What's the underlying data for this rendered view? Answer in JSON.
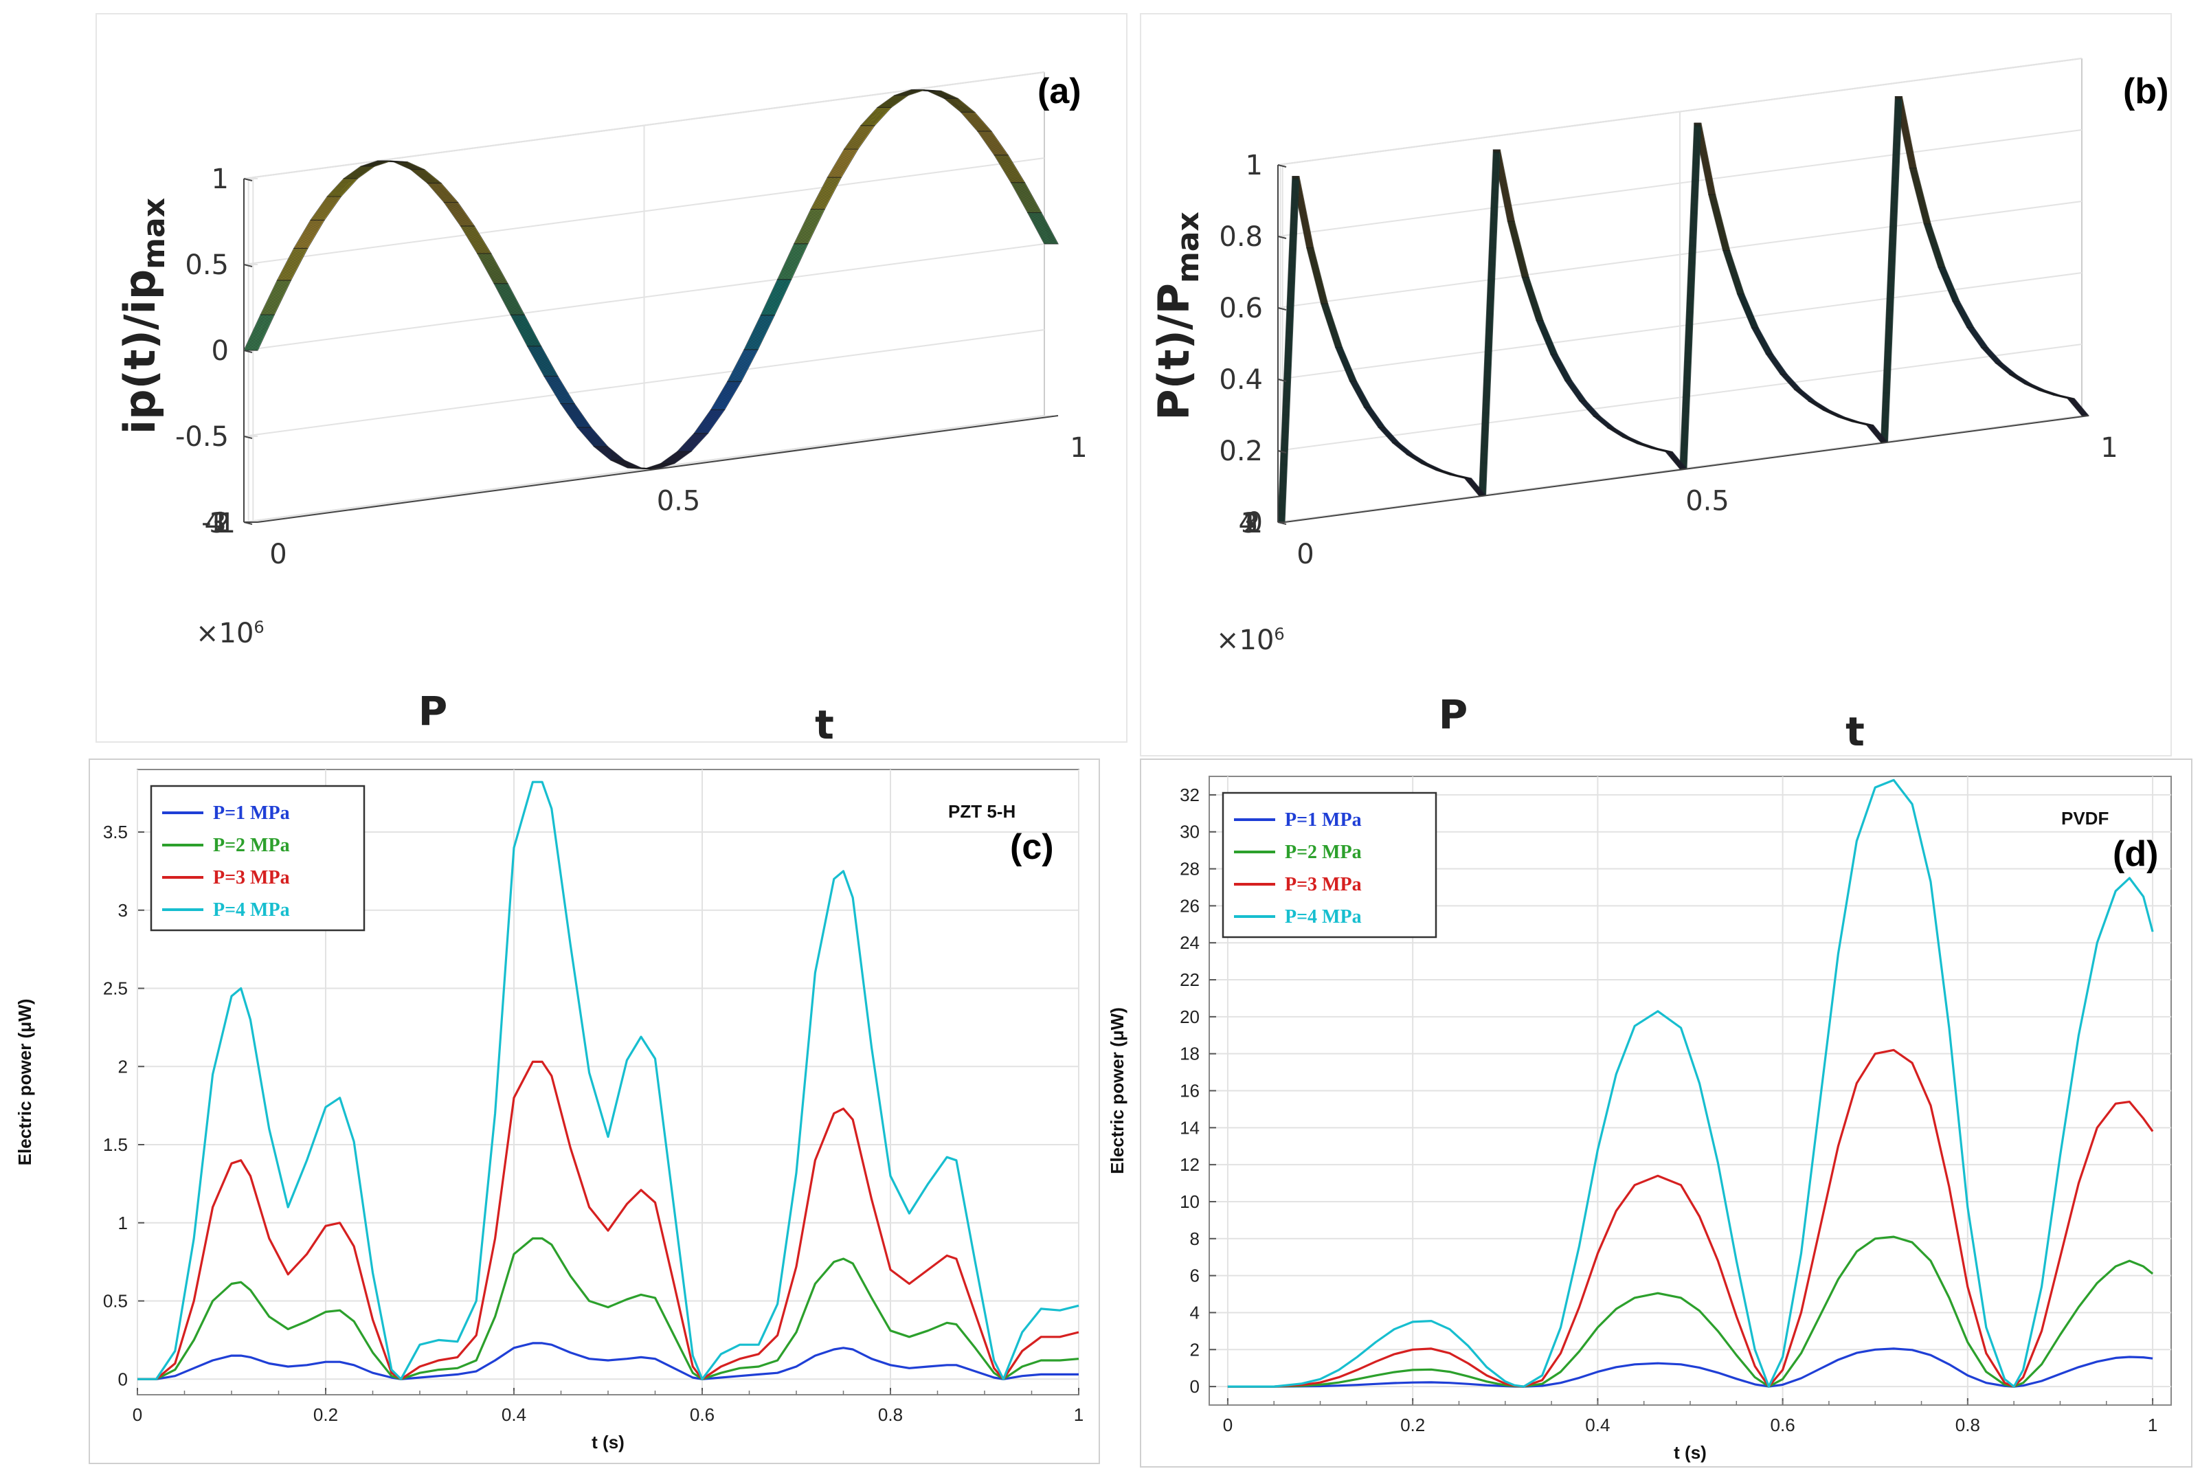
{
  "surfaces": [
    {
      "id": "a",
      "panel_label": "(a)",
      "z_label_main": "ip(t)/ip",
      "z_label_sub": "max",
      "z_ticks": [
        "1",
        "0.5",
        "0",
        "-0.5",
        "-1"
      ],
      "x_label": "t",
      "x_ticks": [
        "0",
        "0.5",
        "1"
      ],
      "y_label": "P",
      "y_ticks": [
        "4",
        "3",
        "2",
        "1"
      ],
      "y_multiplier": "×10",
      "y_multiplier_exp": "6",
      "function": "sin(2*pi*1.5*t)",
      "zmin": -1,
      "zmax": 1
    },
    {
      "id": "b",
      "panel_label": "(b)",
      "z_label_main": "P(t)/P",
      "z_label_sub": "max",
      "z_ticks": [
        "1",
        "0.8",
        "0.6",
        "0.4",
        "0.2",
        "0"
      ],
      "x_label": "t",
      "x_ticks": [
        "0",
        "0.5",
        "1"
      ],
      "y_label": "P",
      "y_ticks": [
        "4",
        "3",
        "2",
        "1"
      ],
      "y_multiplier": "×10",
      "y_multiplier_exp": "6",
      "function": "sawtooth-decay, 4 peaks",
      "zmin": 0,
      "zmax": 1
    }
  ],
  "chart_data": [
    {
      "id": "c",
      "type": "line",
      "panel_label": "(c)",
      "material": "PZT 5-H",
      "xlabel": "t (s)",
      "ylabel": "Electric power (μW)",
      "xlim": [
        0,
        1
      ],
      "ylim": [
        -0.1,
        3.9
      ],
      "x_ticks": [
        0,
        0.2,
        0.4,
        0.6,
        0.8,
        1
      ],
      "x_tick_labels": [
        "0",
        "0.2",
        "0.4",
        "0.6",
        "0.8",
        "1"
      ],
      "y_ticks": [
        0,
        0.5,
        1,
        1.5,
        2,
        2.5,
        3,
        3.5
      ],
      "y_tick_labels": [
        "0",
        "0.5",
        "1",
        "1.5",
        "2",
        "2.5",
        "3",
        "3.5"
      ],
      "legend_position": "top-left",
      "x": [
        0,
        0.02,
        0.04,
        0.06,
        0.08,
        0.1,
        0.11,
        0.12,
        0.14,
        0.16,
        0.18,
        0.2,
        0.215,
        0.23,
        0.25,
        0.27,
        0.28,
        0.3,
        0.32,
        0.34,
        0.36,
        0.38,
        0.4,
        0.42,
        0.43,
        0.44,
        0.46,
        0.48,
        0.5,
        0.52,
        0.535,
        0.55,
        0.57,
        0.59,
        0.6,
        0.62,
        0.64,
        0.66,
        0.68,
        0.7,
        0.72,
        0.74,
        0.75,
        0.76,
        0.78,
        0.8,
        0.82,
        0.84,
        0.86,
        0.87,
        0.89,
        0.91,
        0.92,
        0.94,
        0.96,
        0.98,
        1.0
      ],
      "series": [
        {
          "name": "P=1 MPa",
          "color": "#1f3fd6",
          "values": [
            0,
            0,
            0.02,
            0.07,
            0.12,
            0.15,
            0.15,
            0.14,
            0.1,
            0.08,
            0.09,
            0.11,
            0.11,
            0.09,
            0.04,
            0.01,
            0.0,
            0.01,
            0.02,
            0.03,
            0.05,
            0.12,
            0.2,
            0.23,
            0.23,
            0.22,
            0.17,
            0.13,
            0.12,
            0.13,
            0.14,
            0.13,
            0.07,
            0.01,
            0.0,
            0.01,
            0.02,
            0.03,
            0.04,
            0.08,
            0.15,
            0.19,
            0.2,
            0.19,
            0.13,
            0.09,
            0.07,
            0.08,
            0.09,
            0.09,
            0.05,
            0.01,
            0.0,
            0.02,
            0.03,
            0.03,
            0.03
          ]
        },
        {
          "name": "P=2 MPa",
          "color": "#2ca02c",
          "values": [
            0,
            0,
            0.06,
            0.25,
            0.5,
            0.61,
            0.62,
            0.57,
            0.4,
            0.32,
            0.37,
            0.43,
            0.44,
            0.37,
            0.17,
            0.02,
            0.0,
            0.04,
            0.06,
            0.07,
            0.12,
            0.4,
            0.8,
            0.9,
            0.9,
            0.86,
            0.66,
            0.5,
            0.46,
            0.51,
            0.54,
            0.52,
            0.28,
            0.04,
            0.0,
            0.04,
            0.07,
            0.08,
            0.12,
            0.3,
            0.61,
            0.75,
            0.77,
            0.74,
            0.52,
            0.31,
            0.27,
            0.31,
            0.36,
            0.35,
            0.2,
            0.04,
            0.0,
            0.08,
            0.12,
            0.12,
            0.13
          ]
        },
        {
          "name": "P=3 MPa",
          "color": "#d62020",
          "values": [
            0,
            0,
            0.1,
            0.5,
            1.1,
            1.38,
            1.4,
            1.3,
            0.9,
            0.67,
            0.8,
            0.98,
            1.0,
            0.85,
            0.38,
            0.04,
            0.0,
            0.08,
            0.12,
            0.14,
            0.28,
            0.9,
            1.8,
            2.03,
            2.03,
            1.94,
            1.48,
            1.1,
            0.95,
            1.12,
            1.21,
            1.13,
            0.61,
            0.08,
            0.0,
            0.08,
            0.13,
            0.16,
            0.28,
            0.72,
            1.4,
            1.7,
            1.73,
            1.66,
            1.15,
            0.7,
            0.61,
            0.7,
            0.79,
            0.77,
            0.42,
            0.07,
            0.0,
            0.18,
            0.27,
            0.27,
            0.3
          ]
        },
        {
          "name": "P=4 MPa",
          "color": "#17becf",
          "values": [
            0,
            0,
            0.18,
            0.9,
            1.95,
            2.45,
            2.5,
            2.3,
            1.6,
            1.1,
            1.4,
            1.74,
            1.8,
            1.52,
            0.68,
            0.06,
            0.0,
            0.22,
            0.25,
            0.24,
            0.5,
            1.7,
            3.4,
            3.82,
            3.82,
            3.65,
            2.78,
            1.96,
            1.55,
            2.04,
            2.19,
            2.05,
            1.1,
            0.15,
            0.0,
            0.16,
            0.22,
            0.22,
            0.48,
            1.32,
            2.6,
            3.2,
            3.25,
            3.08,
            2.12,
            1.3,
            1.06,
            1.25,
            1.42,
            1.4,
            0.75,
            0.12,
            0.0,
            0.3,
            0.45,
            0.44,
            0.47
          ]
        }
      ]
    },
    {
      "id": "d",
      "type": "line",
      "panel_label": "(d)",
      "material": "PVDF",
      "xlabel": "t (s)",
      "ylabel": "Electric power (μW)",
      "xlim": [
        -0.02,
        1.02
      ],
      "ylim": [
        -1,
        33
      ],
      "x_ticks": [
        0,
        0.2,
        0.4,
        0.6,
        0.8,
        1
      ],
      "x_tick_labels": [
        "0",
        "0.2",
        "0.4",
        "0.6",
        "0.8",
        "1"
      ],
      "y_ticks": [
        0,
        2,
        4,
        6,
        8,
        10,
        12,
        14,
        16,
        18,
        20,
        22,
        24,
        26,
        28,
        30,
        32
      ],
      "y_tick_labels": [
        "0",
        "2",
        "4",
        "6",
        "8",
        "10",
        "12",
        "14",
        "16",
        "18",
        "20",
        "22",
        "24",
        "26",
        "28",
        "30",
        "32"
      ],
      "legend_position": "top-left",
      "x": [
        0,
        0.05,
        0.08,
        0.1,
        0.12,
        0.14,
        0.16,
        0.18,
        0.2,
        0.22,
        0.24,
        0.26,
        0.28,
        0.3,
        0.31,
        0.32,
        0.34,
        0.36,
        0.38,
        0.4,
        0.42,
        0.44,
        0.465,
        0.49,
        0.51,
        0.53,
        0.55,
        0.57,
        0.585,
        0.6,
        0.62,
        0.64,
        0.66,
        0.68,
        0.7,
        0.72,
        0.74,
        0.76,
        0.78,
        0.8,
        0.82,
        0.84,
        0.85,
        0.86,
        0.88,
        0.9,
        0.92,
        0.94,
        0.96,
        0.975,
        0.99,
        1.0
      ],
      "series": [
        {
          "name": "P=1 MPa",
          "color": "#1f3fd6",
          "values": [
            0,
            0,
            0.01,
            0.02,
            0.05,
            0.09,
            0.14,
            0.19,
            0.22,
            0.23,
            0.2,
            0.14,
            0.07,
            0.02,
            0.005,
            0,
            0.04,
            0.2,
            0.47,
            0.8,
            1.05,
            1.2,
            1.26,
            1.2,
            1.02,
            0.75,
            0.42,
            0.12,
            0,
            0.1,
            0.45,
            0.95,
            1.45,
            1.82,
            2.0,
            2.05,
            1.98,
            1.7,
            1.2,
            0.6,
            0.2,
            0.03,
            0,
            0.05,
            0.3,
            0.68,
            1.05,
            1.35,
            1.55,
            1.6,
            1.58,
            1.52
          ]
        },
        {
          "name": "P=2 MPa",
          "color": "#2ca02c",
          "values": [
            0,
            0,
            0.04,
            0.1,
            0.22,
            0.4,
            0.6,
            0.78,
            0.9,
            0.92,
            0.8,
            0.55,
            0.27,
            0.07,
            0.02,
            0,
            0.15,
            0.8,
            1.9,
            3.2,
            4.2,
            4.8,
            5.05,
            4.8,
            4.1,
            3.0,
            1.7,
            0.5,
            0,
            0.4,
            1.8,
            3.8,
            5.8,
            7.3,
            8.0,
            8.1,
            7.8,
            6.8,
            4.8,
            2.4,
            0.8,
            0.1,
            0,
            0.2,
            1.2,
            2.8,
            4.3,
            5.6,
            6.5,
            6.8,
            6.5,
            6.1
          ]
        },
        {
          "name": "P=3 MPa",
          "color": "#d62020",
          "values": [
            0,
            0,
            0.09,
            0.22,
            0.5,
            0.9,
            1.35,
            1.75,
            2.0,
            2.05,
            1.8,
            1.25,
            0.6,
            0.16,
            0.04,
            0,
            0.35,
            1.8,
            4.3,
            7.2,
            9.5,
            10.9,
            11.4,
            10.9,
            9.2,
            6.8,
            3.8,
            1.1,
            0,
            0.9,
            4.0,
            8.5,
            13.0,
            16.4,
            18.0,
            18.2,
            17.5,
            15.2,
            10.8,
            5.4,
            1.8,
            0.2,
            0,
            0.5,
            3.0,
            7.0,
            11.0,
            14.0,
            15.3,
            15.4,
            14.5,
            13.8
          ]
        },
        {
          "name": "P=4 MPa",
          "color": "#17becf",
          "values": [
            0,
            0,
            0.16,
            0.4,
            0.9,
            1.6,
            2.4,
            3.1,
            3.5,
            3.55,
            3.1,
            2.2,
            1.05,
            0.28,
            0.07,
            0,
            0.6,
            3.2,
            7.6,
            12.8,
            16.9,
            19.5,
            20.3,
            19.4,
            16.4,
            12.1,
            6.8,
            2.0,
            0,
            1.6,
            7.2,
            15.3,
            23.4,
            29.5,
            32.4,
            32.8,
            31.5,
            27.3,
            19.4,
            9.7,
            3.2,
            0.4,
            0,
            0.9,
            5.4,
            12.5,
            19.0,
            24.0,
            26.8,
            27.5,
            26.5,
            24.6
          ]
        }
      ]
    }
  ]
}
